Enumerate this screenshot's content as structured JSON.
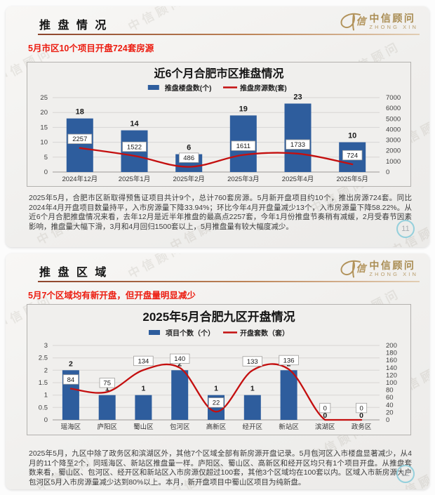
{
  "watermark_text": "中信顾问",
  "brand": {
    "cn": "中信顾问",
    "en": "ZHONG XIN"
  },
  "slides": [
    {
      "header_title": "推 盘 情 况",
      "subtitle": "5月市区10个项目开盘724套房源",
      "page_number": "11",
      "paragraph": "2025年5月，合肥市区新取得预售证项目共计9个，总计760套房源。5月新开盘项目约10个，推出房源724套。同比2024年4月开盘项目数量持平，入市房源量下降33.94%；环比今年4月开盘量减少13个，入市房源量下降58.22%。从近6个月合肥推盘情况来看，去年12月是近半年推盘的最高点2257套，今年1月份推盘节奏稍有减缓，2月受春节因素影响，推盘量大幅下滑，3月和4月回归1500套以上，5月推盘量有较大幅度减少。"
    },
    {
      "header_title": "推 盘 区 域",
      "subtitle": "5月7个区域均有新开盘，但开盘量明显减少",
      "page_number": "12",
      "paragraph": "2025年5月，九区中除了政务区和滨湖区外，其他7个区域全部有新房源开盘记录。5月包河区入市楼盘显著减少，从4月的11个降至2个，同瑶海区、新站区推盘量一样。庐阳区、蜀山区、高新区和经开区均只有1个项目开盘。从推盘套数来看，蜀山区、包河区、经开区和新站区入市房源仅超过100套，其他3个区域均在100套以内。区域入市新房源大户包河区5月入市房源量减少达到80%以上。本月，新开盘项目中蜀山区项目为纯新盘。"
    }
  ],
  "chart_data": [
    {
      "type": "bar+line",
      "title": "近6个月合肥市区推盘情况",
      "categories": [
        "2024年12月",
        "2025年1月",
        "2025年2月",
        "2025年3月",
        "2025年4月",
        "2025年5月"
      ],
      "series": [
        {
          "name": "推盘楼盘数(个)",
          "type": "bar",
          "axis": "left",
          "color": "#2e5d9d",
          "values": [
            18,
            14,
            6,
            19,
            23,
            10
          ]
        },
        {
          "name": "推盘房源数(套)",
          "type": "line",
          "axis": "right",
          "color": "#c40f0f",
          "values": [
            2257,
            1522,
            486,
            1611,
            1733,
            724
          ]
        }
      ],
      "left_axis": {
        "min": 0,
        "max": 25,
        "step": 5
      },
      "right_axis": {
        "min": 0,
        "max": 7000,
        "step": 1000
      },
      "legend_position": "top",
      "grid": true
    },
    {
      "type": "bar+line",
      "title": "2025年5月合肥九区开盘情况",
      "categories": [
        "瑶海区",
        "庐阳区",
        "蜀山区",
        "包河区",
        "高新区",
        "经开区",
        "新站区",
        "滨湖区",
        "政务区"
      ],
      "series": [
        {
          "name": "项目个数（个）",
          "type": "bar",
          "axis": "left",
          "color": "#2e5d9d",
          "values": [
            2,
            1,
            1,
            2,
            1,
            1,
            2,
            0,
            0
          ]
        },
        {
          "name": "开盘套数（套）",
          "type": "line",
          "axis": "right",
          "color": "#c40f0f",
          "values": [
            84,
            75,
            134,
            140,
            22,
            133,
            136,
            0,
            0
          ]
        }
      ],
      "left_axis": {
        "min": 0,
        "max": 3,
        "step": 0.5
      },
      "right_axis": {
        "min": 0,
        "max": 200,
        "step": 20
      },
      "legend_position": "top",
      "grid": true
    }
  ]
}
